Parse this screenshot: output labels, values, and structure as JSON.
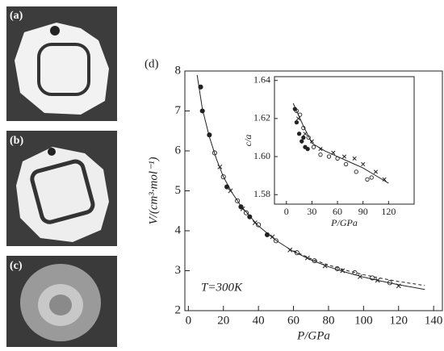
{
  "panels": [
    "(a)",
    "(b)",
    "(c)"
  ],
  "chart_data": [
    {
      "type": "scatter",
      "label": "(d)",
      "annotation": "T=300K",
      "x_label": "P/GPa",
      "y_label": "V/(cm³·mol⁻¹)",
      "xlim": [
        -2,
        145
      ],
      "ylim": [
        2,
        8
      ],
      "xticks": [
        0,
        20,
        40,
        60,
        80,
        100,
        120,
        140
      ],
      "yticks": [
        2,
        3,
        4,
        5,
        6,
        7,
        8
      ],
      "series": [
        {
          "style": "line",
          "color": "#222",
          "x": [
            5,
            8,
            12,
            16,
            20,
            25,
            30,
            40,
            50,
            60,
            70,
            80,
            90,
            100,
            110,
            120,
            135
          ],
          "values": [
            7.9,
            7.05,
            6.35,
            5.8,
            5.35,
            4.95,
            4.62,
            4.12,
            3.76,
            3.48,
            3.27,
            3.1,
            2.96,
            2.84,
            2.74,
            2.65,
            2.53
          ]
        },
        {
          "style": "dashed",
          "color": "#222",
          "x": [
            60,
            70,
            80,
            90,
            100,
            110,
            120,
            135
          ],
          "values": [
            3.5,
            3.3,
            3.14,
            3.01,
            2.9,
            2.81,
            2.73,
            2.63
          ]
        },
        {
          "style": "filled-circle",
          "color": "#222",
          "x": [
            7,
            8,
            12,
            22,
            30,
            35,
            45
          ],
          "values": [
            7.6,
            7.0,
            6.4,
            5.1,
            4.6,
            4.35,
            3.9
          ]
        },
        {
          "style": "open-circle",
          "color": "#222",
          "x": [
            15,
            20,
            28,
            33,
            40,
            50,
            62,
            72,
            85,
            95,
            105,
            115
          ],
          "values": [
            5.95,
            5.35,
            4.75,
            4.45,
            4.15,
            3.75,
            3.45,
            3.25,
            3.05,
            2.95,
            2.82,
            2.7
          ]
        },
        {
          "style": "cross",
          "color": "#222",
          "x": [
            18,
            24,
            31,
            38,
            48,
            58,
            68,
            78,
            88,
            98,
            108,
            120
          ],
          "values": [
            5.6,
            5.0,
            4.55,
            4.2,
            3.85,
            3.52,
            3.32,
            3.12,
            3.0,
            2.85,
            2.76,
            2.62
          ]
        }
      ]
    },
    {
      "type": "scatter",
      "x_label": "P/GPa",
      "y_label": "c/a",
      "xlim": [
        -14,
        150
      ],
      "ylim": [
        1.575,
        1.642
      ],
      "xticks": [
        0,
        30,
        60,
        90,
        120
      ],
      "yticks": [
        1.58,
        {
          "value": 1.6,
          "label": "1.60"
        },
        1.62,
        1.64
      ],
      "series": [
        {
          "style": "line",
          "color": "#222",
          "x": [
            8,
            20,
            30,
            45,
            60,
            75,
            90,
            105,
            120
          ],
          "values": [
            1.628,
            1.616,
            1.607,
            1.603,
            1.6,
            1.597,
            1.594,
            1.59,
            1.586
          ]
        },
        {
          "style": "filled-circle",
          "color": "#222",
          "x": [
            10,
            12,
            15,
            18,
            20,
            22,
            25
          ],
          "values": [
            1.625,
            1.618,
            1.612,
            1.608,
            1.61,
            1.605,
            1.604
          ]
        },
        {
          "style": "open-circle",
          "color": "#222",
          "x": [
            12,
            16,
            20,
            26,
            32,
            40,
            50,
            60,
            70,
            82,
            95,
            100
          ],
          "values": [
            1.624,
            1.622,
            1.615,
            1.61,
            1.605,
            1.601,
            1.6,
            1.599,
            1.596,
            1.592,
            1.588,
            1.589
          ]
        },
        {
          "style": "cross",
          "color": "#222",
          "x": [
            14,
            22,
            30,
            40,
            55,
            68,
            80,
            90,
            105,
            115
          ],
          "values": [
            1.62,
            1.612,
            1.608,
            1.604,
            1.602,
            1.6,
            1.599,
            1.596,
            1.592,
            1.588
          ]
        }
      ]
    }
  ]
}
